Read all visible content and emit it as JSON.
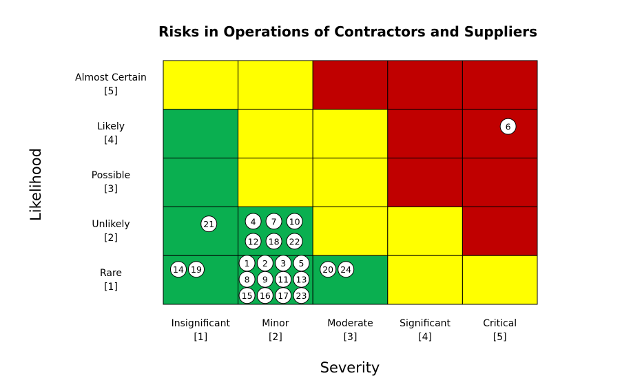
{
  "chart_data": {
    "type": "heatmap",
    "title": "Risks in Operations of Contractors and Suppliers",
    "xlabel": "Severity",
    "ylabel": "Likelihood",
    "x_categories": [
      {
        "name": "Insignificant",
        "score": "[1]"
      },
      {
        "name": "Minor",
        "score": "[2]"
      },
      {
        "name": "Moderate",
        "score": "[3]"
      },
      {
        "name": "Significant",
        "score": "[4]"
      },
      {
        "name": "Critical",
        "score": "[5]"
      }
    ],
    "y_categories": [
      {
        "name": "Almost Certain",
        "score": "[5]"
      },
      {
        "name": "Likely",
        "score": "[4]"
      },
      {
        "name": "Possible",
        "score": "[3]"
      },
      {
        "name": "Unlikely",
        "score": "[2]"
      },
      {
        "name": "Rare",
        "score": "[1]"
      }
    ],
    "colors": {
      "low": "#0aaf50",
      "medium": "#ffff00",
      "high": "#c00000",
      "border": "#000000"
    },
    "cell_levels_by_likelihood_top_to_bottom": [
      [
        "medium",
        "medium",
        "high",
        "high",
        "high"
      ],
      [
        "low",
        "medium",
        "medium",
        "high",
        "high"
      ],
      [
        "low",
        "medium",
        "medium",
        "high",
        "high"
      ],
      [
        "low",
        "low",
        "medium",
        "medium",
        "high"
      ],
      [
        "low",
        "low",
        "low",
        "medium",
        "medium"
      ]
    ],
    "risks": [
      {
        "severity": 5,
        "likelihood": 4,
        "ids": [
          "6"
        ]
      },
      {
        "severity": 1,
        "likelihood": 2,
        "ids": [
          "21"
        ]
      },
      {
        "severity": 2,
        "likelihood": 2,
        "ids": [
          "4",
          "7",
          "10",
          "12",
          "18",
          "22"
        ]
      },
      {
        "severity": 1,
        "likelihood": 1,
        "ids": [
          "14",
          "19"
        ]
      },
      {
        "severity": 2,
        "likelihood": 1,
        "ids": [
          "1",
          "2",
          "3",
          "5",
          "8",
          "9",
          "11",
          "13",
          "15",
          "16",
          "17",
          "23"
        ]
      },
      {
        "severity": 3,
        "likelihood": 1,
        "ids": [
          "20",
          "24"
        ]
      }
    ]
  }
}
